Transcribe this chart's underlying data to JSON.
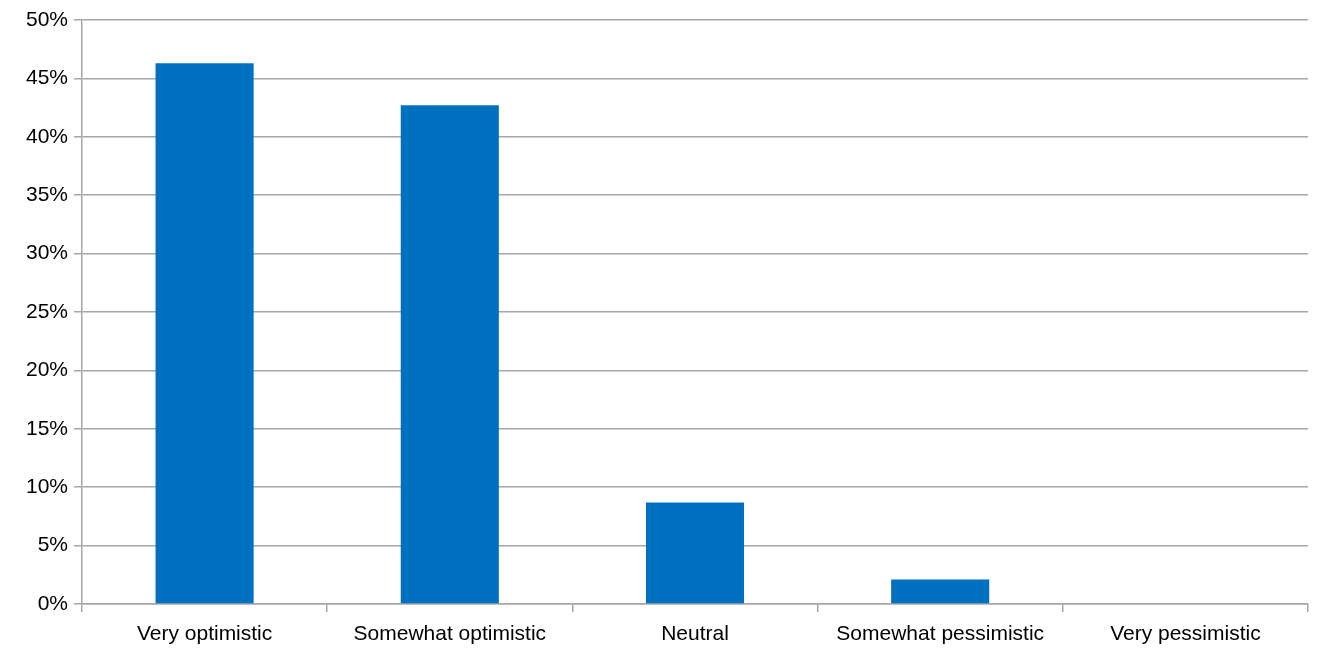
{
  "chart_data": {
    "type": "bar",
    "categories": [
      "Very optimistic",
      "Somewhat optimistic",
      "Neutral",
      "Somewhat pessimistic",
      "Very pessimistic"
    ],
    "values": [
      46.3,
      42.7,
      8.7,
      2.1,
      0
    ],
    "color": "#0070c0",
    "ylim": [
      0,
      50
    ],
    "yticks": [
      {
        "value": 0,
        "label": "0%"
      },
      {
        "value": 5,
        "label": "5%"
      },
      {
        "value": 10,
        "label": "10%"
      },
      {
        "value": 15,
        "label": "15%"
      },
      {
        "value": 20,
        "label": "20%"
      },
      {
        "value": 25,
        "label": "25%"
      },
      {
        "value": 30,
        "label": "30%"
      },
      {
        "value": 35,
        "label": "35%"
      },
      {
        "value": 40,
        "label": "40%"
      },
      {
        "value": 45,
        "label": "45%"
      },
      {
        "value": 50,
        "label": "50%"
      }
    ],
    "grid": "y"
  }
}
